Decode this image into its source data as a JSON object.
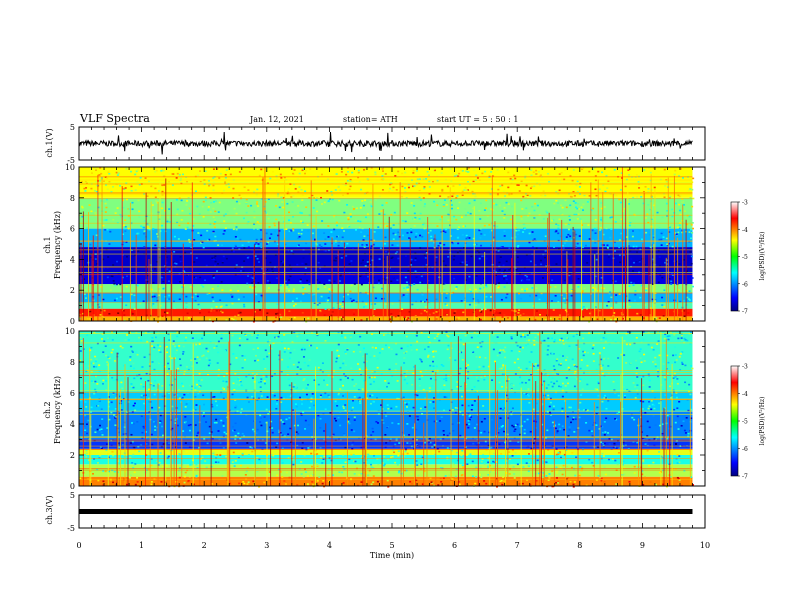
{
  "header": {
    "title": "VLF Spectra",
    "date": "Jan. 12, 2021",
    "station": "station= ATH",
    "start": "start  UT =  5 : 50 : 1"
  },
  "chart_data": [
    {
      "type": "line",
      "panel": "ch1-waveform",
      "ylabel": "ch.1(V)",
      "ylim": [
        -5,
        5
      ],
      "yticks": [
        "5",
        "-5"
      ],
      "xlim": [
        0,
        10
      ],
      "data_extent": [
        0,
        9.8
      ],
      "baseline": 0,
      "typical_amplitude": 0.9
    },
    {
      "type": "heatmap",
      "panel": "ch1-spectrogram",
      "ylabel_top": "ch.1",
      "ylabel": "Frequency (kHz)",
      "ylim": [
        0,
        10
      ],
      "yticks": [
        "0",
        "2",
        "4",
        "6",
        "8",
        "10"
      ],
      "xlim": [
        0,
        10
      ],
      "colorbar": {
        "label": "log(PSD)(V²/Hz)",
        "range": [
          -7,
          -3
        ],
        "ticks": [
          "-3",
          "-4",
          "-5",
          "-6",
          "-7"
        ]
      },
      "band_levels": [
        {
          "f_low": 0,
          "f_high": 0.3,
          "level": -4.2
        },
        {
          "f_low": 0.3,
          "f_high": 0.8,
          "level": -3.6
        },
        {
          "f_low": 0.8,
          "f_high": 1.2,
          "level": -5.2
        },
        {
          "f_low": 1.2,
          "f_high": 1.8,
          "level": -5.8
        },
        {
          "f_low": 1.8,
          "f_high": 2.4,
          "level": -5.0
        },
        {
          "f_low": 2.4,
          "f_high": 3.0,
          "level": -6.6
        },
        {
          "f_low": 3.0,
          "f_high": 4.8,
          "level": -6.7
        },
        {
          "f_low": 4.8,
          "f_high": 6.0,
          "level": -5.8
        },
        {
          "f_low": 6.0,
          "f_high": 8.0,
          "level": -5.0
        },
        {
          "f_low": 8.0,
          "f_high": 10,
          "level": -4.5
        }
      ]
    },
    {
      "type": "heatmap",
      "panel": "ch2-spectrogram",
      "ylabel_top": "ch.2",
      "ylabel": "Frequency (kHz)",
      "ylim": [
        0,
        10
      ],
      "yticks": [
        "0",
        "2",
        "4",
        "6",
        "8",
        "10"
      ],
      "xlim": [
        0,
        10
      ],
      "colorbar": {
        "label": "log(PSD)(V²/Hz)",
        "range": [
          -7,
          -3
        ],
        "ticks": [
          "-3",
          "-4",
          "-5",
          "-6",
          "-7"
        ]
      },
      "band_levels": [
        {
          "f_low": 0,
          "f_high": 0.6,
          "level": -4.0
        },
        {
          "f_low": 0.6,
          "f_high": 1.4,
          "level": -4.8
        },
        {
          "f_low": 1.4,
          "f_high": 2.0,
          "level": -5.4
        },
        {
          "f_low": 2.0,
          "f_high": 2.4,
          "level": -4.6
        },
        {
          "f_low": 2.4,
          "f_high": 3.0,
          "level": -6.3
        },
        {
          "f_low": 3.0,
          "f_high": 4.8,
          "level": -6.0
        },
        {
          "f_low": 4.8,
          "f_high": 6.0,
          "level": -5.7
        },
        {
          "f_low": 6.0,
          "f_high": 10,
          "level": -5.3
        }
      ]
    },
    {
      "type": "line",
      "panel": "ch3-waveform",
      "ylabel": "ch.3(V)",
      "ylim": [
        -5,
        5
      ],
      "yticks": [
        "5",
        "-5"
      ],
      "xlim": [
        0,
        10
      ],
      "data_extent": [
        0,
        9.8
      ],
      "baseline": 0,
      "typical_amplitude": 0.3,
      "xlabel": "Time (min)",
      "xticks": [
        "0",
        "1",
        "2",
        "3",
        "4",
        "5",
        "6",
        "7",
        "8",
        "9",
        "10"
      ]
    }
  ]
}
